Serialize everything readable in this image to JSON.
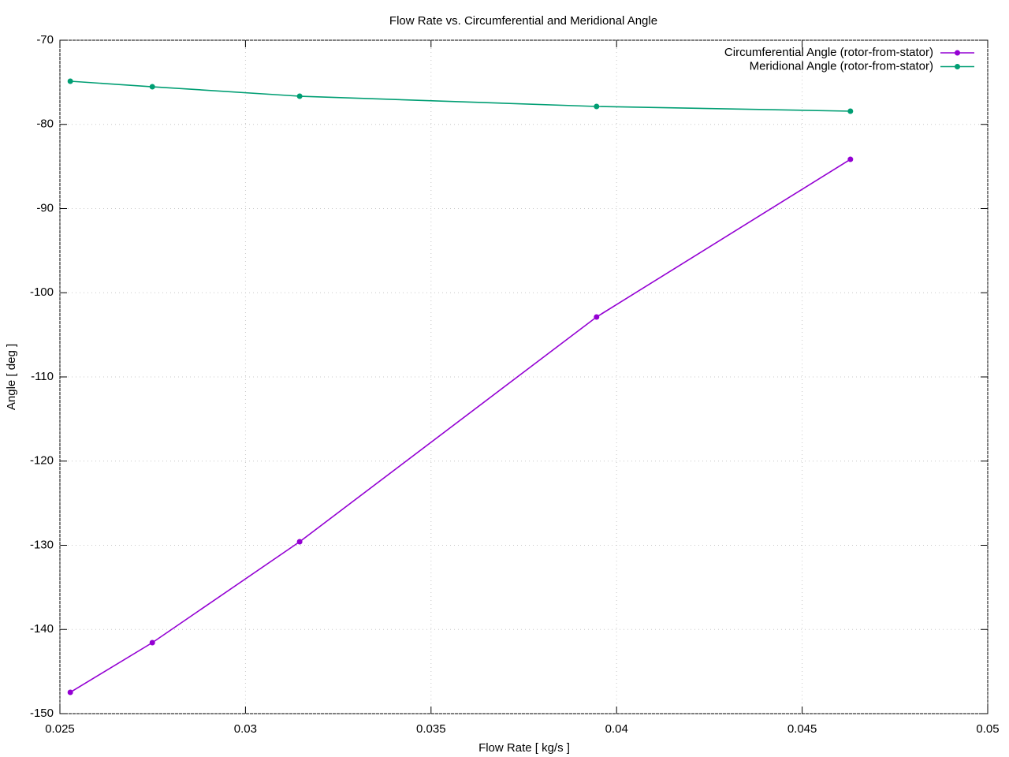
{
  "chart_data": {
    "type": "line",
    "title": "Flow Rate vs. Circumferential and Meridional Angle",
    "x_label": "Flow Rate [ kg/s ]",
    "y_label": "Angle [ deg ]",
    "x": [
      0.02528,
      0.02749,
      0.03146,
      0.03946,
      0.0463
    ],
    "series": [
      {
        "name": "Circumferential Angle (rotor-from-stator)",
        "color": "#9400d3",
        "values": [
          -147.47,
          -141.57,
          -129.58,
          -102.88,
          -84.15
        ]
      },
      {
        "name": "Meridional Angle (rotor-from-stator)",
        "color": "#009e73",
        "values": [
          -74.87,
          -75.53,
          -76.65,
          -77.87,
          -78.43
        ]
      }
    ],
    "xlim": [
      0.025,
      0.05
    ],
    "xticks": [
      0.025,
      0.03,
      0.035,
      0.04,
      0.045,
      0.05
    ],
    "ylim": [
      -150,
      -70
    ],
    "yticks": [
      -150,
      -140,
      -130,
      -120,
      -110,
      -100,
      -90,
      -80,
      -70
    ],
    "grid": true,
    "legend": "top-right"
  }
}
